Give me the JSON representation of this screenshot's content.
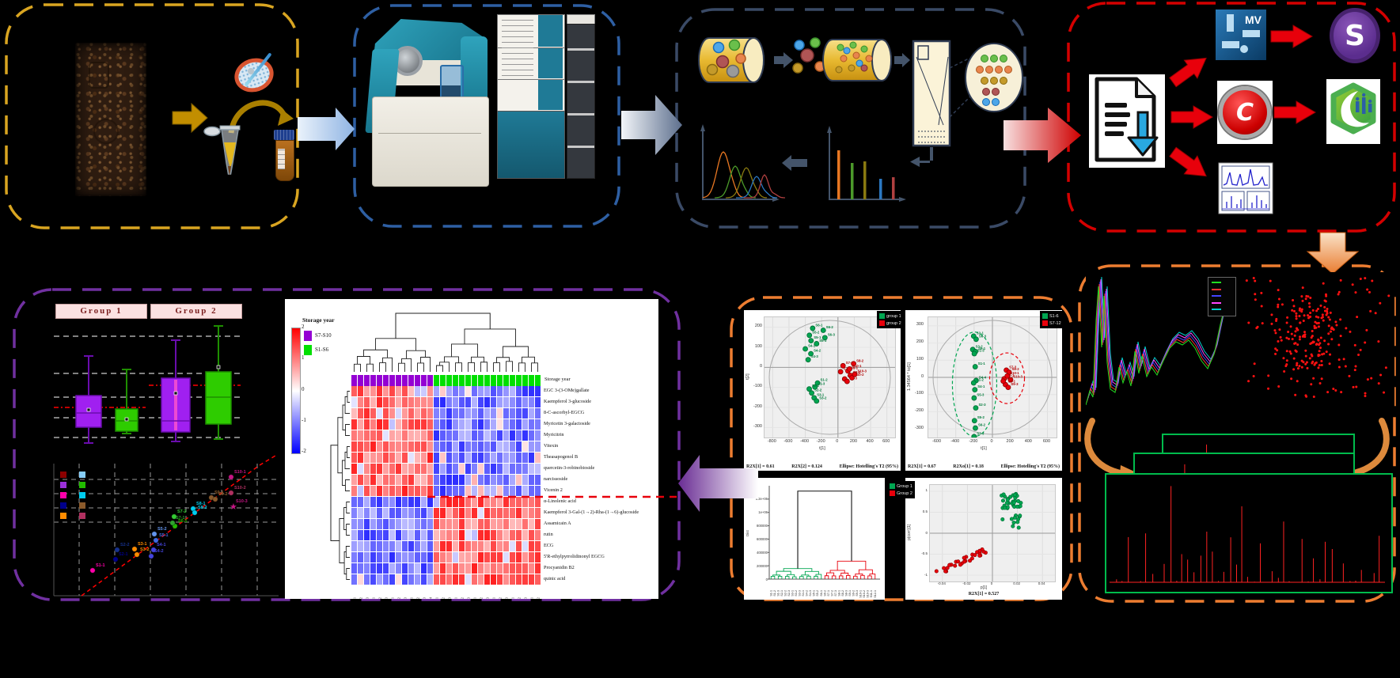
{
  "icons": {
    "markerview_label": "MV",
    "simca_label": "S",
    "compound_discoverer_label": "C"
  },
  "library": {
    "trace_colors": [
      "#00CCCC",
      "#FF44FF",
      "#4444FF",
      "#FF3333",
      "#22DD22"
    ],
    "scatter_color": "#FF1111",
    "box_color": "#00BB4C",
    "spectrum_color": "#FF2222"
  },
  "chart_data": {
    "boxplot": {
      "type": "box",
      "group1_label": "Group 1",
      "group2_label": "Group 2",
      "colors": {
        "purple": "#A020F0",
        "green": "#2ECC00",
        "mean_line": "#FF0000"
      }
    },
    "corr": {
      "type": "scatter",
      "points": [
        {
          "label": "S1-1",
          "x": 61,
          "y": 161,
          "color": "#FF00AA"
        },
        {
          "label": "S2-1",
          "x": 90,
          "y": 147,
          "color": "#00008B"
        },
        {
          "label": "S2-2",
          "x": 92,
          "y": 135,
          "color": "#16308A"
        },
        {
          "label": "S3-1",
          "x": 114,
          "y": 134,
          "color": "#FF8C00"
        },
        {
          "label": "S3-2",
          "x": 117,
          "y": 141,
          "color": "#FF8C00"
        },
        {
          "label": "S4-1",
          "x": 138,
          "y": 135,
          "color": "#4444DD"
        },
        {
          "label": "S4-2",
          "x": 135,
          "y": 143,
          "color": "#4444DD"
        },
        {
          "label": "S5-1",
          "x": 141,
          "y": 123,
          "color": "#4169E1"
        },
        {
          "label": "S5-2",
          "x": 139,
          "y": 115,
          "color": "#6495ED"
        },
        {
          "label": "S6-1",
          "x": 165,
          "y": 105,
          "color": "#22BB00"
        },
        {
          "label": "S7-1",
          "x": 162,
          "y": 101,
          "color": "#2FA32F"
        },
        {
          "label": "S7-2",
          "x": 164,
          "y": 93,
          "color": "#33CC33"
        },
        {
          "label": "S8-1",
          "x": 188,
          "y": 83,
          "color": "#00CCEE"
        },
        {
          "label": "S8-2",
          "x": 190,
          "y": 88,
          "color": "#00CCEE"
        },
        {
          "label": "S9-1",
          "x": 211,
          "y": 69,
          "color": "#8B5A2B"
        },
        {
          "label": "S9-2",
          "x": 216,
          "y": 71,
          "color": "#8B5A2B"
        },
        {
          "label": "S10-1",
          "x": 236,
          "y": 43,
          "color": "#C71585"
        },
        {
          "label": "S10-2",
          "x": 236,
          "y": 63,
          "color": "#B03060"
        },
        {
          "label": "S10-3",
          "x": 238,
          "y": 80,
          "color": "#C71585",
          "star": true
        }
      ],
      "legend_colors_col1": [
        "#8B0000",
        "#9B30D9",
        "#FF00AA",
        "#00008B",
        "#FF8C00"
      ],
      "legend_colors_col2": [
        "#87CEFA",
        "#22BB00",
        "#00CCEE",
        "#8B5A2B",
        "#B03060"
      ]
    },
    "heatmap": {
      "type": "heatmap",
      "legend_title": "Storage year",
      "annotation_label": "Storage year",
      "scale_ticks": [
        "2",
        "1",
        "0",
        "-1",
        "-2"
      ],
      "legend_items": [
        {
          "label": "S7-S10",
          "color": "#9400D3"
        },
        {
          "label": "S1-S6",
          "color": "#00DF00"
        }
      ],
      "n_group1_cols": 13,
      "row_labels": [
        {
          "name": "EGC 3-(3-OMe)gallate",
          "pattern": "up"
        },
        {
          "name": "Kaempferol 3-glucoside",
          "pattern": "up"
        },
        {
          "name": "8-C-ascorbyl-EGCG",
          "pattern": "up"
        },
        {
          "name": "Myricetin 3-galactoside",
          "pattern": "up"
        },
        {
          "name": "Myricitrin",
          "pattern": "up"
        },
        {
          "name": "Vitexin",
          "pattern": "up"
        },
        {
          "name": "Theasapogenol B",
          "pattern": "up"
        },
        {
          "name": "quercetin-3-robinobioside",
          "pattern": "up"
        },
        {
          "name": "narcissoside",
          "pattern": "up"
        },
        {
          "name": "Vicenin 2",
          "pattern": "up"
        },
        {
          "name": "α-Linolenic acid",
          "pattern": "down"
        },
        {
          "name": "Kaempferol 3-Gal-(1→2)-Rha-(1→6)-glucoside",
          "pattern": "down"
        },
        {
          "name": "Assamicain A",
          "pattern": "down"
        },
        {
          "name": "rutin",
          "pattern": "down"
        },
        {
          "name": "ECG",
          "pattern": "down"
        },
        {
          "name": "5'R-ethylpyrrolidinonyl EGCG",
          "pattern": "down"
        },
        {
          "name": "Procyanidin B2",
          "pattern": "down"
        },
        {
          "name": "quinic acid",
          "pattern": "down"
        }
      ],
      "col_labels": [
        "S7-1",
        "S7-2",
        "S7-3",
        "S8-1",
        "S8-2",
        "S8-3",
        "S9-1",
        "S9-2",
        "S9-3",
        "S10-1",
        "S10-2",
        "S10-3",
        "S10-4",
        "S1-1",
        "S1-2",
        "S1-3",
        "S2-1",
        "S2-2",
        "S2-3",
        "S3-1",
        "S3-2",
        "S3-3",
        "S4-1",
        "S4-2",
        "S4-3",
        "S5-1",
        "S5-2",
        "S5-3",
        "S6-1",
        "S6-2"
      ]
    },
    "pca": {
      "type": "scatter",
      "x_label": "t[1]",
      "y_label": "t[2]",
      "x_ticks": [
        -800,
        -600,
        -400,
        -200,
        0,
        200,
        400,
        600
      ],
      "y_ticks": [
        200,
        100,
        0,
        -100,
        -200,
        -300
      ],
      "caption": [
        "R2X[1] = 0.61",
        "R2X[2] = 0.124",
        "Ellipse: Hotelling's T2 (95%)"
      ],
      "legend": [
        {
          "label": "group 1",
          "color": "#00A651"
        },
        {
          "label": "group 2",
          "color": "#E8000B"
        }
      ],
      "green_points": [
        {
          "l": "S6-1",
          "x": -310,
          "y": 195
        },
        {
          "l": "S6-2",
          "x": -180,
          "y": 185
        },
        {
          "l": "S5-2",
          "x": -350,
          "y": 160
        },
        {
          "l": "S6-3",
          "x": -160,
          "y": 148
        },
        {
          "l": "S5-1",
          "x": -330,
          "y": 133
        },
        {
          "l": "S5-3",
          "x": -262,
          "y": 118
        },
        {
          "l": "S4-1",
          "x": -400,
          "y": 92
        },
        {
          "l": "S4-2",
          "x": -332,
          "y": 68
        },
        {
          "l": "S4-3",
          "x": -365,
          "y": 38
        },
        {
          "l": "S1-2",
          "x": -250,
          "y": -78
        },
        {
          "l": "S1-3",
          "x": -282,
          "y": -98
        },
        {
          "l": "S2-1",
          "x": -352,
          "y": -108
        },
        {
          "l": "S2-2",
          "x": -322,
          "y": -128
        },
        {
          "l": "S3-1",
          "x": -292,
          "y": -152
        },
        {
          "l": "S3-2",
          "x": -262,
          "y": -168
        }
      ],
      "red_points": [
        {
          "l": "S7-1",
          "x": 62,
          "y": 8
        },
        {
          "l": "S7-2",
          "x": 32,
          "y": -22
        },
        {
          "l": "S8-1",
          "x": 122,
          "y": -18
        },
        {
          "l": "S8-2",
          "x": 192,
          "y": 18
        },
        {
          "l": "S9-1",
          "x": 82,
          "y": -58
        },
        {
          "l": "S9-2",
          "x": 152,
          "y": -40
        },
        {
          "l": "S9-3",
          "x": 112,
          "y": -70
        },
        {
          "l": "S10-1",
          "x": 142,
          "y": -8
        },
        {
          "l": "S10-2",
          "x": 172,
          "y": -52
        },
        {
          "l": "S10-3",
          "x": 205,
          "y": -35
        }
      ]
    },
    "opls": {
      "type": "scatter",
      "x_label": "t[1]",
      "y_label": "1.34564 * to[1]",
      "x_ticks": [
        -600,
        -400,
        -200,
        0,
        200,
        400,
        600
      ],
      "y_ticks": [
        300,
        200,
        100,
        0,
        -100,
        -200,
        -300
      ],
      "caption": [
        "R2X[1] = 0.67",
        "R2Xo[1] = 0.18",
        "Ellipse: Hotelling's T2 (95%)"
      ],
      "legend": [
        {
          "label": "S1-6",
          "color": "#00A651"
        },
        {
          "label": "S7-12",
          "color": "#E8000B"
        }
      ],
      "green_points": [
        {
          "l": "S2-1",
          "x": -205,
          "y": 240
        },
        {
          "l": "S6-3",
          "x": -178,
          "y": 222
        },
        {
          "l": "S3-2",
          "x": -215,
          "y": 162
        },
        {
          "l": "S6-1",
          "x": -185,
          "y": 150
        },
        {
          "l": "S1-3",
          "x": -198,
          "y": 138
        },
        {
          "l": "S1-1",
          "x": -188,
          "y": 62
        },
        {
          "l": "S4-4",
          "x": -178,
          "y": -18
        },
        {
          "l": "S1-2",
          "x": -205,
          "y": -32
        },
        {
          "l": "S4-1",
          "x": -192,
          "y": -72
        },
        {
          "l": "S5-3",
          "x": -200,
          "y": -120
        },
        {
          "l": "S2-3",
          "x": -182,
          "y": -178
        },
        {
          "l": "S5-2",
          "x": -196,
          "y": -252
        },
        {
          "l": "S6-2",
          "x": -186,
          "y": -295
        },
        {
          "l": "S3-3",
          "x": -200,
          "y": -345
        }
      ],
      "red_points": [
        {
          "l": "S7-3",
          "x": 152,
          "y": 42
        },
        {
          "l": "S8-2",
          "x": 182,
          "y": 30
        },
        {
          "l": "S9-1",
          "x": 128,
          "y": -8
        },
        {
          "l": "S10-3",
          "x": 198,
          "y": -14
        },
        {
          "l": "S8-1",
          "x": 142,
          "y": -42
        },
        {
          "l": "S9-3",
          "x": 172,
          "y": -58
        },
        {
          "l": "S7-1",
          "x": 118,
          "y": -22
        },
        {
          "l": "S10-1",
          "x": 162,
          "y": 8
        }
      ]
    },
    "dendro": {
      "type": "dendrogram",
      "y_label": "Dist",
      "y_ticks": [
        "1.2e+06",
        "1e+06",
        "800000",
        "600000",
        "400000",
        "200000",
        "0"
      ],
      "legend": [
        {
          "label": "Group 1",
          "color": "#00A651"
        },
        {
          "label": "Group 2",
          "color": "#E8000B"
        }
      ],
      "leaves_group1": [
        "S1-1",
        "S1-2",
        "S1-3",
        "S2-1",
        "S2-2",
        "S2-3",
        "S3-1",
        "S3-2",
        "S3-3",
        "S4-1",
        "S4-2",
        "S4-3",
        "S5-1",
        "S5-2",
        "S6-1"
      ],
      "leaves_group2": [
        "S6-2",
        "S7-1",
        "S7-2",
        "S7-3",
        "S8-1",
        "S8-2",
        "S8-3",
        "S9-1",
        "S9-2",
        "S9-3",
        "S10-1",
        "S10-2",
        "S10-3",
        "S11-1",
        "S12-1"
      ]
    },
    "splot": {
      "type": "scatter",
      "x_label": "p[1]",
      "y_label": "p(corr)[1]",
      "y_ticks": [
        1,
        0.5,
        0,
        -0.5,
        -1
      ],
      "x_ticks": [
        -0.04,
        -0.02,
        0,
        0.02,
        0.04
      ],
      "caption": "R2X[1] = 0.527"
    }
  }
}
